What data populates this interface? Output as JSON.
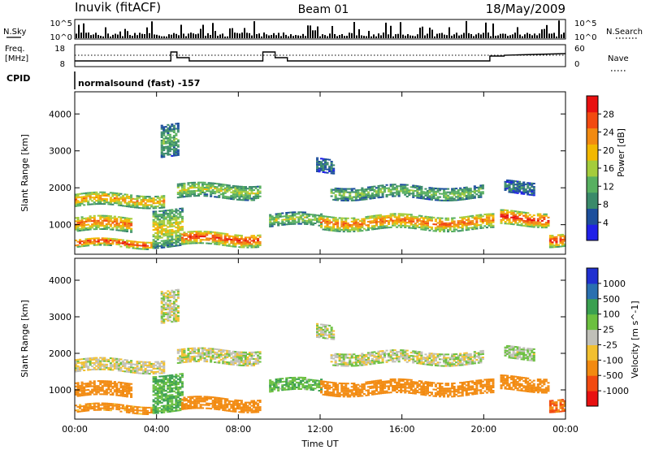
{
  "header": {
    "station": "Inuvik (fitACF)",
    "beam": "Beam 01",
    "date": "18/May/2009"
  },
  "strips": {
    "nsky_label": "N.Sky",
    "nsky_ticks": [
      "10^5",
      "10^0"
    ],
    "nsearch_label": "N.Search",
    "nsearch_ticks": [
      "10^5",
      "10^0"
    ],
    "freq_label_1": "Freq.",
    "freq_label_2": "[MHz]",
    "freq_ticks": [
      "18",
      "8"
    ],
    "nave_label": "Nave",
    "nave_ticks": [
      "60",
      "0"
    ],
    "cpid_label": "CPID",
    "cpid_value": "normalsound (fast) -157"
  },
  "colors": {
    "power": [
      "#2020e8",
      "#1d4f9c",
      "#3a8a6a",
      "#58b060",
      "#a4cc3c",
      "#f2b800",
      "#f28a10",
      "#f24a10",
      "#e81010"
    ],
    "velocity": [
      "#e81010",
      "#f24a10",
      "#f28a10",
      "#f2c030",
      "#c0c0b8",
      "#6cc040",
      "#3aa050",
      "#2a70b0",
      "#2030d0"
    ]
  },
  "chart_data": [
    {
      "type": "heatmap",
      "title": "Power",
      "ylabel": "Slant Range [km]",
      "xlabel": "",
      "x_ticks": [
        "00:00",
        "04:00",
        "08:00",
        "12:00",
        "16:00",
        "20:00",
        "00:00"
      ],
      "y_ticks": [
        1000,
        2000,
        3000,
        4000
      ],
      "ylim": [
        200,
        4600
      ],
      "xlim_hours": [
        0,
        24
      ],
      "colorbar_label": "Power [dB]",
      "colorbar_ticks": [
        "28",
        "24",
        "20",
        "16",
        "12",
        "8",
        "4"
      ],
      "colorbar_range": [
        0,
        30
      ]
    },
    {
      "type": "heatmap",
      "title": "Velocity",
      "ylabel": "Slant Range [km]",
      "xlabel": "Time UT",
      "x_ticks": [
        "00:00",
        "04:00",
        "08:00",
        "12:00",
        "16:00",
        "20:00",
        "00:00"
      ],
      "y_ticks": [
        1000,
        2000,
        3000,
        4000
      ],
      "ylim": [
        200,
        4600
      ],
      "xlim_hours": [
        0,
        24
      ],
      "colorbar_label": "Velocity [m s^-1]",
      "colorbar_ticks": [
        "1000",
        "500",
        "100",
        "25",
        "-25",
        "-100",
        "-500",
        "-1000"
      ]
    }
  ]
}
